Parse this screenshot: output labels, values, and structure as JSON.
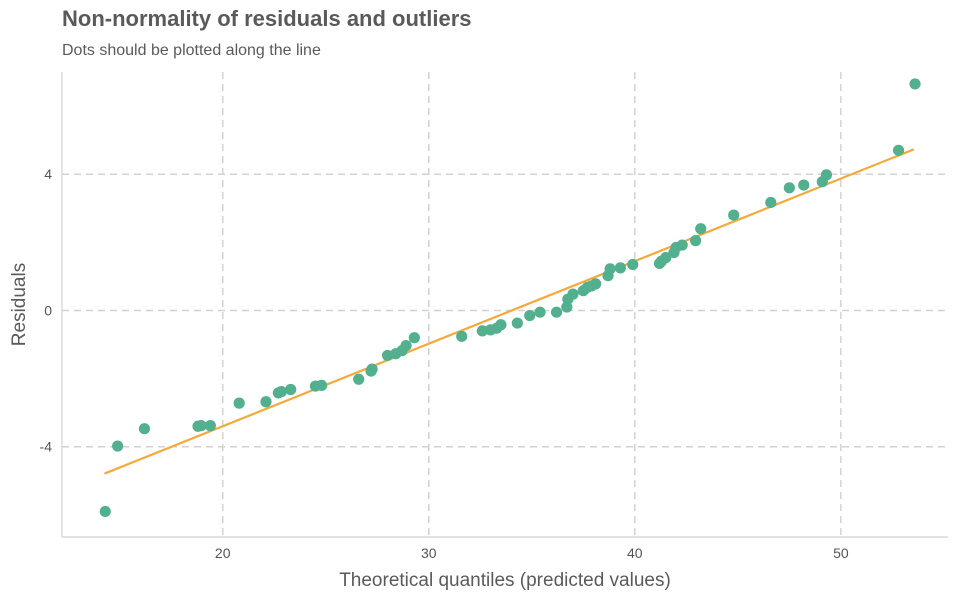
{
  "chart_data": {
    "type": "scatter",
    "title": "Non-normality of residuals and outliers",
    "subtitle": "Dots should be plotted along the line",
    "xlabel": "Theoretical quantiles (predicted values)",
    "ylabel": "Residuals",
    "xlim": [
      12.2,
      55.2
    ],
    "ylim": [
      -6.65,
      7.0
    ],
    "xticks": [
      20,
      30,
      40,
      50
    ],
    "yticks": [
      -4,
      0,
      4
    ],
    "grid": true,
    "point_color": "#52b08e",
    "line_color": "#f5a93b",
    "reference_line": {
      "x": [
        14.3,
        53.5
      ],
      "y": [
        -4.78,
        4.72
      ]
    },
    "points": [
      {
        "x": 14.3,
        "y": -5.9
      },
      {
        "x": 14.9,
        "y": -3.98
      },
      {
        "x": 16.2,
        "y": -3.47
      },
      {
        "x": 18.8,
        "y": -3.4
      },
      {
        "x": 18.95,
        "y": -3.38
      },
      {
        "x": 19.4,
        "y": -3.38
      },
      {
        "x": 20.8,
        "y": -2.72
      },
      {
        "x": 22.1,
        "y": -2.68
      },
      {
        "x": 22.7,
        "y": -2.42
      },
      {
        "x": 22.85,
        "y": -2.38
      },
      {
        "x": 23.3,
        "y": -2.32
      },
      {
        "x": 24.5,
        "y": -2.22
      },
      {
        "x": 24.8,
        "y": -2.2
      },
      {
        "x": 26.6,
        "y": -2.02
      },
      {
        "x": 27.2,
        "y": -1.78
      },
      {
        "x": 27.25,
        "y": -1.72
      },
      {
        "x": 28.0,
        "y": -1.32
      },
      {
        "x": 28.4,
        "y": -1.27
      },
      {
        "x": 28.7,
        "y": -1.18
      },
      {
        "x": 28.9,
        "y": -1.03
      },
      {
        "x": 29.3,
        "y": -0.8
      },
      {
        "x": 31.6,
        "y": -0.76
      },
      {
        "x": 32.6,
        "y": -0.6
      },
      {
        "x": 33.0,
        "y": -0.57
      },
      {
        "x": 33.3,
        "y": -0.52
      },
      {
        "x": 33.5,
        "y": -0.42
      },
      {
        "x": 34.3,
        "y": -0.37
      },
      {
        "x": 34.9,
        "y": -0.15
      },
      {
        "x": 35.4,
        "y": -0.05
      },
      {
        "x": 36.2,
        "y": -0.05
      },
      {
        "x": 36.7,
        "y": 0.1
      },
      {
        "x": 36.75,
        "y": 0.33
      },
      {
        "x": 37.0,
        "y": 0.48
      },
      {
        "x": 37.5,
        "y": 0.58
      },
      {
        "x": 37.7,
        "y": 0.68
      },
      {
        "x": 37.9,
        "y": 0.72
      },
      {
        "x": 38.1,
        "y": 0.78
      },
      {
        "x": 38.7,
        "y": 1.02
      },
      {
        "x": 38.8,
        "y": 1.22
      },
      {
        "x": 39.3,
        "y": 1.25
      },
      {
        "x": 39.9,
        "y": 1.35
      },
      {
        "x": 41.2,
        "y": 1.38
      },
      {
        "x": 41.3,
        "y": 1.45
      },
      {
        "x": 41.5,
        "y": 1.55
      },
      {
        "x": 41.9,
        "y": 1.7
      },
      {
        "x": 42.0,
        "y": 1.85
      },
      {
        "x": 42.3,
        "y": 1.92
      },
      {
        "x": 42.95,
        "y": 2.05
      },
      {
        "x": 43.2,
        "y": 2.4
      },
      {
        "x": 44.8,
        "y": 2.8
      },
      {
        "x": 46.6,
        "y": 3.17
      },
      {
        "x": 47.5,
        "y": 3.6
      },
      {
        "x": 48.2,
        "y": 3.68
      },
      {
        "x": 49.1,
        "y": 3.78
      },
      {
        "x": 49.3,
        "y": 3.98
      },
      {
        "x": 52.8,
        "y": 4.7
      },
      {
        "x": 53.6,
        "y": 6.65
      }
    ]
  }
}
